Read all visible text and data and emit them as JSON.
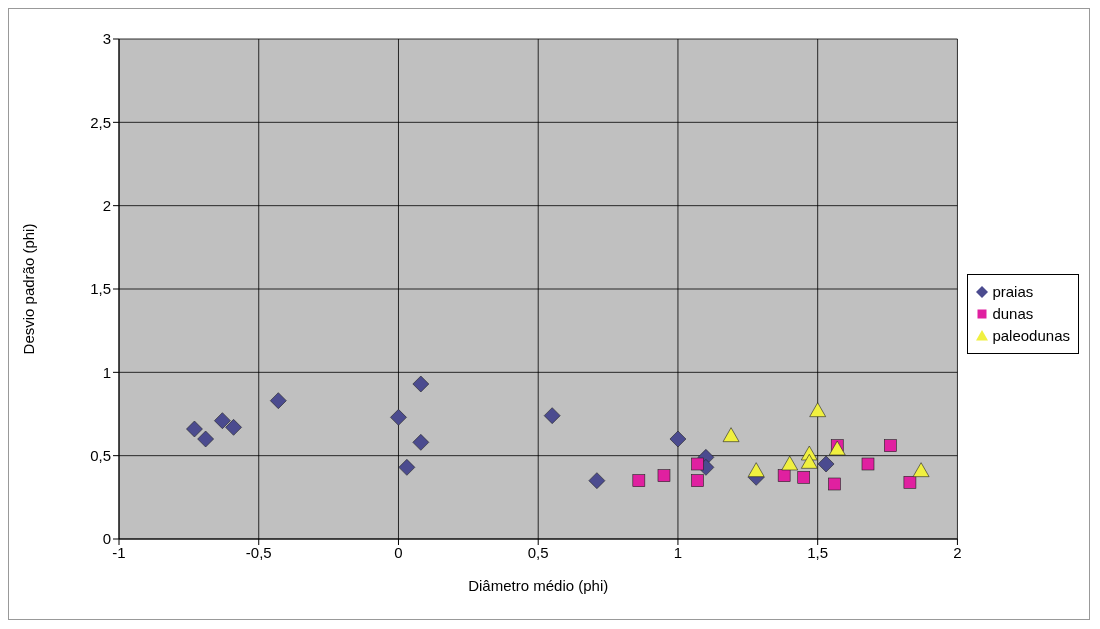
{
  "chart_data": {
    "type": "scatter",
    "xlabel": "Diâmetro médio (phi)",
    "ylabel": "Desvio padrão (phi)",
    "xlim": [
      -1,
      2
    ],
    "xticks": [
      -1,
      {
        "value": -0.5,
        "label": "-0,5"
      },
      0,
      {
        "value": 0.5,
        "label": "0,5"
      },
      1,
      {
        "value": 1.5,
        "label": "1,5"
      },
      2
    ],
    "ylim": [
      0,
      3
    ],
    "yticks": [
      0,
      {
        "value": 0.5,
        "label": "0,5"
      },
      1,
      {
        "value": 1.5,
        "label": "1,5"
      },
      2,
      {
        "value": 2.5,
        "label": "2,5"
      },
      3
    ],
    "grid": true,
    "legend": "right",
    "series": [
      {
        "name": "praias",
        "color": "#4b4b8f",
        "marker": "diamond",
        "x": [
          -0.73,
          -0.69,
          -0.63,
          -0.59,
          -0.43,
          0.0,
          0.08,
          0.03,
          0.08,
          0.55,
          0.71,
          1.0,
          1.1,
          1.1,
          1.53,
          1.28
        ],
        "values": [
          0.66,
          0.6,
          0.71,
          0.67,
          0.83,
          0.73,
          0.93,
          0.43,
          0.58,
          0.74,
          0.35,
          0.6,
          0.49,
          0.43,
          0.45,
          0.37
        ]
      },
      {
        "name": "dunas",
        "color": "#e020a0",
        "marker": "square",
        "x": [
          0.86,
          0.95,
          1.07,
          1.07,
          1.38,
          1.45,
          1.56,
          1.57,
          1.68,
          1.76,
          1.83
        ],
        "values": [
          0.35,
          0.38,
          0.45,
          0.35,
          0.38,
          0.37,
          0.33,
          0.56,
          0.45,
          0.56,
          0.34
        ]
      },
      {
        "name": "paleodunas",
        "color": "#f0f040",
        "marker": "triangle",
        "x": [
          1.19,
          1.28,
          1.4,
          1.47,
          1.47,
          1.5,
          1.57,
          1.87
        ],
        "values": [
          0.62,
          0.41,
          0.45,
          0.51,
          0.46,
          0.77,
          0.54,
          0.41
        ]
      }
    ]
  }
}
